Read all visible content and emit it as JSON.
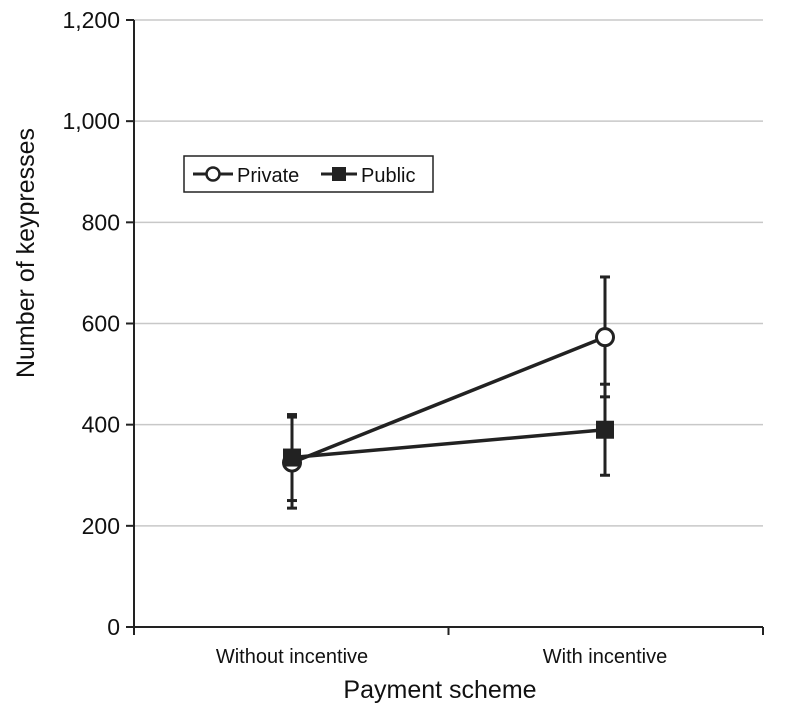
{
  "chart_data": {
    "type": "line",
    "title": "",
    "xlabel": "Payment scheme",
    "ylabel": "Number of keypresses",
    "categories": [
      "Without incentive",
      "With incentive"
    ],
    "ylim": [
      0,
      1200
    ],
    "yticks": [
      0,
      200,
      400,
      600,
      800,
      1000,
      1200
    ],
    "ytick_labels": [
      "0",
      "200",
      "400",
      "600",
      "800",
      "1,000",
      "1,200"
    ],
    "grid": true,
    "legend_position": "upper-left",
    "series": [
      {
        "name": "Private",
        "marker": "open-circle",
        "values": [
          325,
          573
        ],
        "error_low": [
          235,
          455
        ],
        "error_high": [
          415,
          692
        ]
      },
      {
        "name": "Public",
        "marker": "filled-square",
        "values": [
          335,
          390
        ],
        "error_low": [
          250,
          300
        ],
        "error_high": [
          420,
          480
        ]
      }
    ]
  }
}
